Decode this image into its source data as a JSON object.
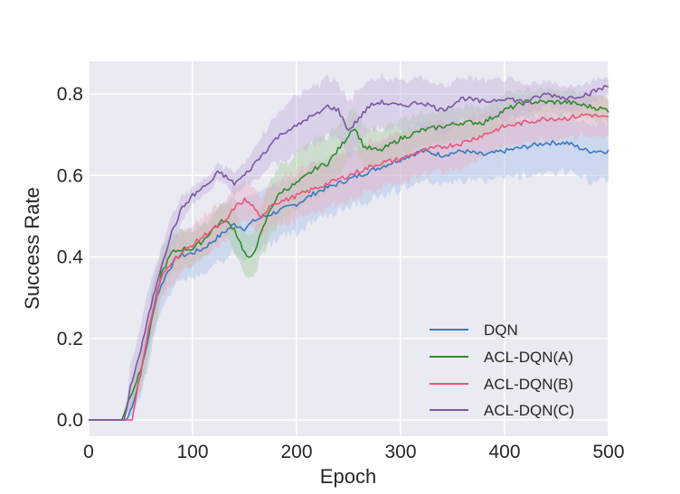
{
  "chart_data": {
    "type": "line",
    "title": "",
    "xlabel": "Epoch",
    "ylabel": "Success Rate",
    "xlim": [
      0,
      500
    ],
    "ylim": [
      -0.04,
      0.88
    ],
    "xticks": [
      0,
      100,
      200,
      300,
      400,
      500
    ],
    "xtick_labels": [
      "0",
      "100",
      "200",
      "300",
      "400",
      "500"
    ],
    "yticks": [
      0.0,
      0.2,
      0.4,
      0.6,
      0.8
    ],
    "ytick_labels": [
      "0.0",
      "0.2",
      "0.4",
      "0.6",
      "0.8"
    ],
    "grid": true,
    "legend_position": "lower right",
    "background": "#eaeaf2",
    "series": [
      {
        "name": "DQN",
        "color": "#3a78c2",
        "band_color": "#a9c4e6",
        "x": [
          0,
          37,
          45,
          55,
          65,
          75,
          85,
          100,
          110,
          120,
          130,
          140,
          150,
          160,
          170,
          180,
          200,
          220,
          240,
          260,
          280,
          300,
          320,
          340,
          360,
          380,
          400,
          420,
          440,
          460,
          480,
          500
        ],
        "values": [
          0,
          0,
          0.06,
          0.17,
          0.3,
          0.36,
          0.4,
          0.41,
          0.42,
          0.44,
          0.46,
          0.48,
          0.47,
          0.49,
          0.5,
          0.51,
          0.53,
          0.56,
          0.58,
          0.6,
          0.62,
          0.64,
          0.66,
          0.65,
          0.66,
          0.65,
          0.66,
          0.67,
          0.68,
          0.68,
          0.66,
          0.66
        ],
        "band": [
          0,
          0,
          0.04,
          0.06,
          0.07,
          0.06,
          0.06,
          0.06,
          0.06,
          0.06,
          0.07,
          0.07,
          0.07,
          0.07,
          0.07,
          0.07,
          0.07,
          0.07,
          0.07,
          0.07,
          0.07,
          0.07,
          0.07,
          0.07,
          0.07,
          0.07,
          0.07,
          0.07,
          0.07,
          0.07,
          0.07,
          0.07
        ]
      },
      {
        "name": "ACL-DQN(A)",
        "color": "#2e8b2e",
        "band_color": "#a8cfa0",
        "x": [
          0,
          32,
          40,
          50,
          60,
          70,
          80,
          90,
          100,
          110,
          120,
          130,
          140,
          150,
          155,
          165,
          175,
          185,
          200,
          210,
          220,
          230,
          245,
          255,
          265,
          280,
          300,
          320,
          340,
          360,
          380,
          400,
          420,
          440,
          460,
          480,
          500
        ],
        "values": [
          0,
          0,
          0.06,
          0.12,
          0.24,
          0.36,
          0.41,
          0.42,
          0.42,
          0.44,
          0.47,
          0.49,
          0.47,
          0.41,
          0.39,
          0.45,
          0.52,
          0.56,
          0.58,
          0.6,
          0.62,
          0.63,
          0.68,
          0.72,
          0.67,
          0.66,
          0.69,
          0.71,
          0.72,
          0.73,
          0.73,
          0.76,
          0.78,
          0.78,
          0.78,
          0.77,
          0.76
        ],
        "band": [
          0,
          0,
          0.03,
          0.05,
          0.06,
          0.06,
          0.05,
          0.05,
          0.04,
          0.04,
          0.04,
          0.04,
          0.05,
          0.05,
          0.05,
          0.06,
          0.07,
          0.07,
          0.07,
          0.07,
          0.07,
          0.07,
          0.06,
          0.05,
          0.05,
          0.05,
          0.05,
          0.04,
          0.04,
          0.04,
          0.04,
          0.04,
          0.03,
          0.03,
          0.03,
          0.03,
          0.03
        ]
      },
      {
        "name": "ACL-DQN(B)",
        "color": "#e8557a",
        "band_color": "#eab2c4",
        "x": [
          0,
          42,
          50,
          60,
          70,
          80,
          90,
          100,
          110,
          120,
          130,
          140,
          150,
          160,
          165,
          175,
          190,
          200,
          220,
          240,
          260,
          280,
          300,
          320,
          340,
          360,
          380,
          400,
          420,
          440,
          460,
          480,
          500
        ],
        "values": [
          0,
          0,
          0.12,
          0.25,
          0.35,
          0.39,
          0.41,
          0.43,
          0.45,
          0.47,
          0.48,
          0.52,
          0.54,
          0.52,
          0.49,
          0.53,
          0.54,
          0.55,
          0.57,
          0.59,
          0.61,
          0.63,
          0.64,
          0.66,
          0.67,
          0.68,
          0.7,
          0.72,
          0.73,
          0.74,
          0.74,
          0.75,
          0.74
        ],
        "band": [
          0,
          0,
          0.04,
          0.05,
          0.05,
          0.05,
          0.05,
          0.05,
          0.05,
          0.05,
          0.05,
          0.05,
          0.05,
          0.05,
          0.05,
          0.05,
          0.06,
          0.06,
          0.06,
          0.06,
          0.06,
          0.06,
          0.06,
          0.06,
          0.06,
          0.06,
          0.05,
          0.05,
          0.05,
          0.05,
          0.05,
          0.05,
          0.05
        ]
      },
      {
        "name": "ACL-DQN(C)",
        "color": "#7b55a6",
        "band_color": "#c5b3dc",
        "x": [
          0,
          35,
          40,
          50,
          60,
          70,
          80,
          90,
          100,
          110,
          120,
          125,
          130,
          140,
          150,
          160,
          170,
          180,
          190,
          200,
          210,
          220,
          230,
          240,
          250,
          260,
          270,
          280,
          300,
          320,
          340,
          360,
          380,
          400,
          420,
          440,
          460,
          480,
          500
        ],
        "values": [
          0,
          0,
          0.08,
          0.17,
          0.28,
          0.38,
          0.46,
          0.52,
          0.55,
          0.57,
          0.59,
          0.61,
          0.6,
          0.58,
          0.6,
          0.63,
          0.66,
          0.69,
          0.71,
          0.72,
          0.74,
          0.75,
          0.77,
          0.76,
          0.71,
          0.74,
          0.77,
          0.78,
          0.77,
          0.78,
          0.76,
          0.79,
          0.78,
          0.79,
          0.78,
          0.8,
          0.79,
          0.8,
          0.82
        ],
        "band": [
          0,
          0,
          0.05,
          0.06,
          0.06,
          0.05,
          0.04,
          0.03,
          0.02,
          0.02,
          0.02,
          0.02,
          0.02,
          0.03,
          0.03,
          0.04,
          0.05,
          0.06,
          0.07,
          0.07,
          0.07,
          0.07,
          0.07,
          0.07,
          0.07,
          0.07,
          0.06,
          0.06,
          0.06,
          0.06,
          0.06,
          0.05,
          0.05,
          0.05,
          0.04,
          0.03,
          0.03,
          0.03,
          0.02
        ]
      }
    ]
  },
  "legend": {
    "items": [
      {
        "label": "DQN"
      },
      {
        "label": "ACL-DQN(A)"
      },
      {
        "label": "ACL-DQN(B)"
      },
      {
        "label": "ACL-DQN(C)"
      }
    ]
  }
}
